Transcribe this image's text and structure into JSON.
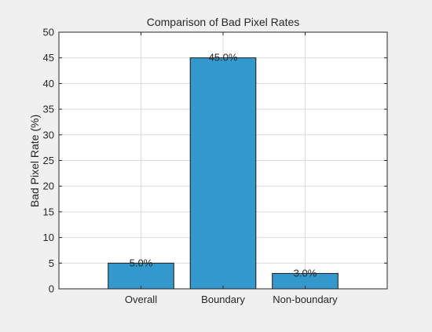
{
  "chart_data": {
    "type": "bar",
    "title": "Comparison of Bad Pixel Rates",
    "xlabel": "",
    "ylabel": "Bad Pixel Rate (%)",
    "categories": [
      "Overall",
      "Boundary",
      "Non-boundary"
    ],
    "values": [
      5.0,
      45.0,
      3.0
    ],
    "data_labels": [
      "5.0%",
      "45.0%",
      "3.0%"
    ],
    "ylim": [
      0,
      50
    ],
    "yticks": [
      0,
      5,
      10,
      15,
      20,
      25,
      30,
      35,
      40,
      45,
      50
    ],
    "grid": true,
    "legend": "none",
    "bar_color": "#3399cc",
    "bar_edge_color": "#1a1a1a",
    "axes_background": "#ffffff",
    "figure_background": "#f0f0f0"
  }
}
